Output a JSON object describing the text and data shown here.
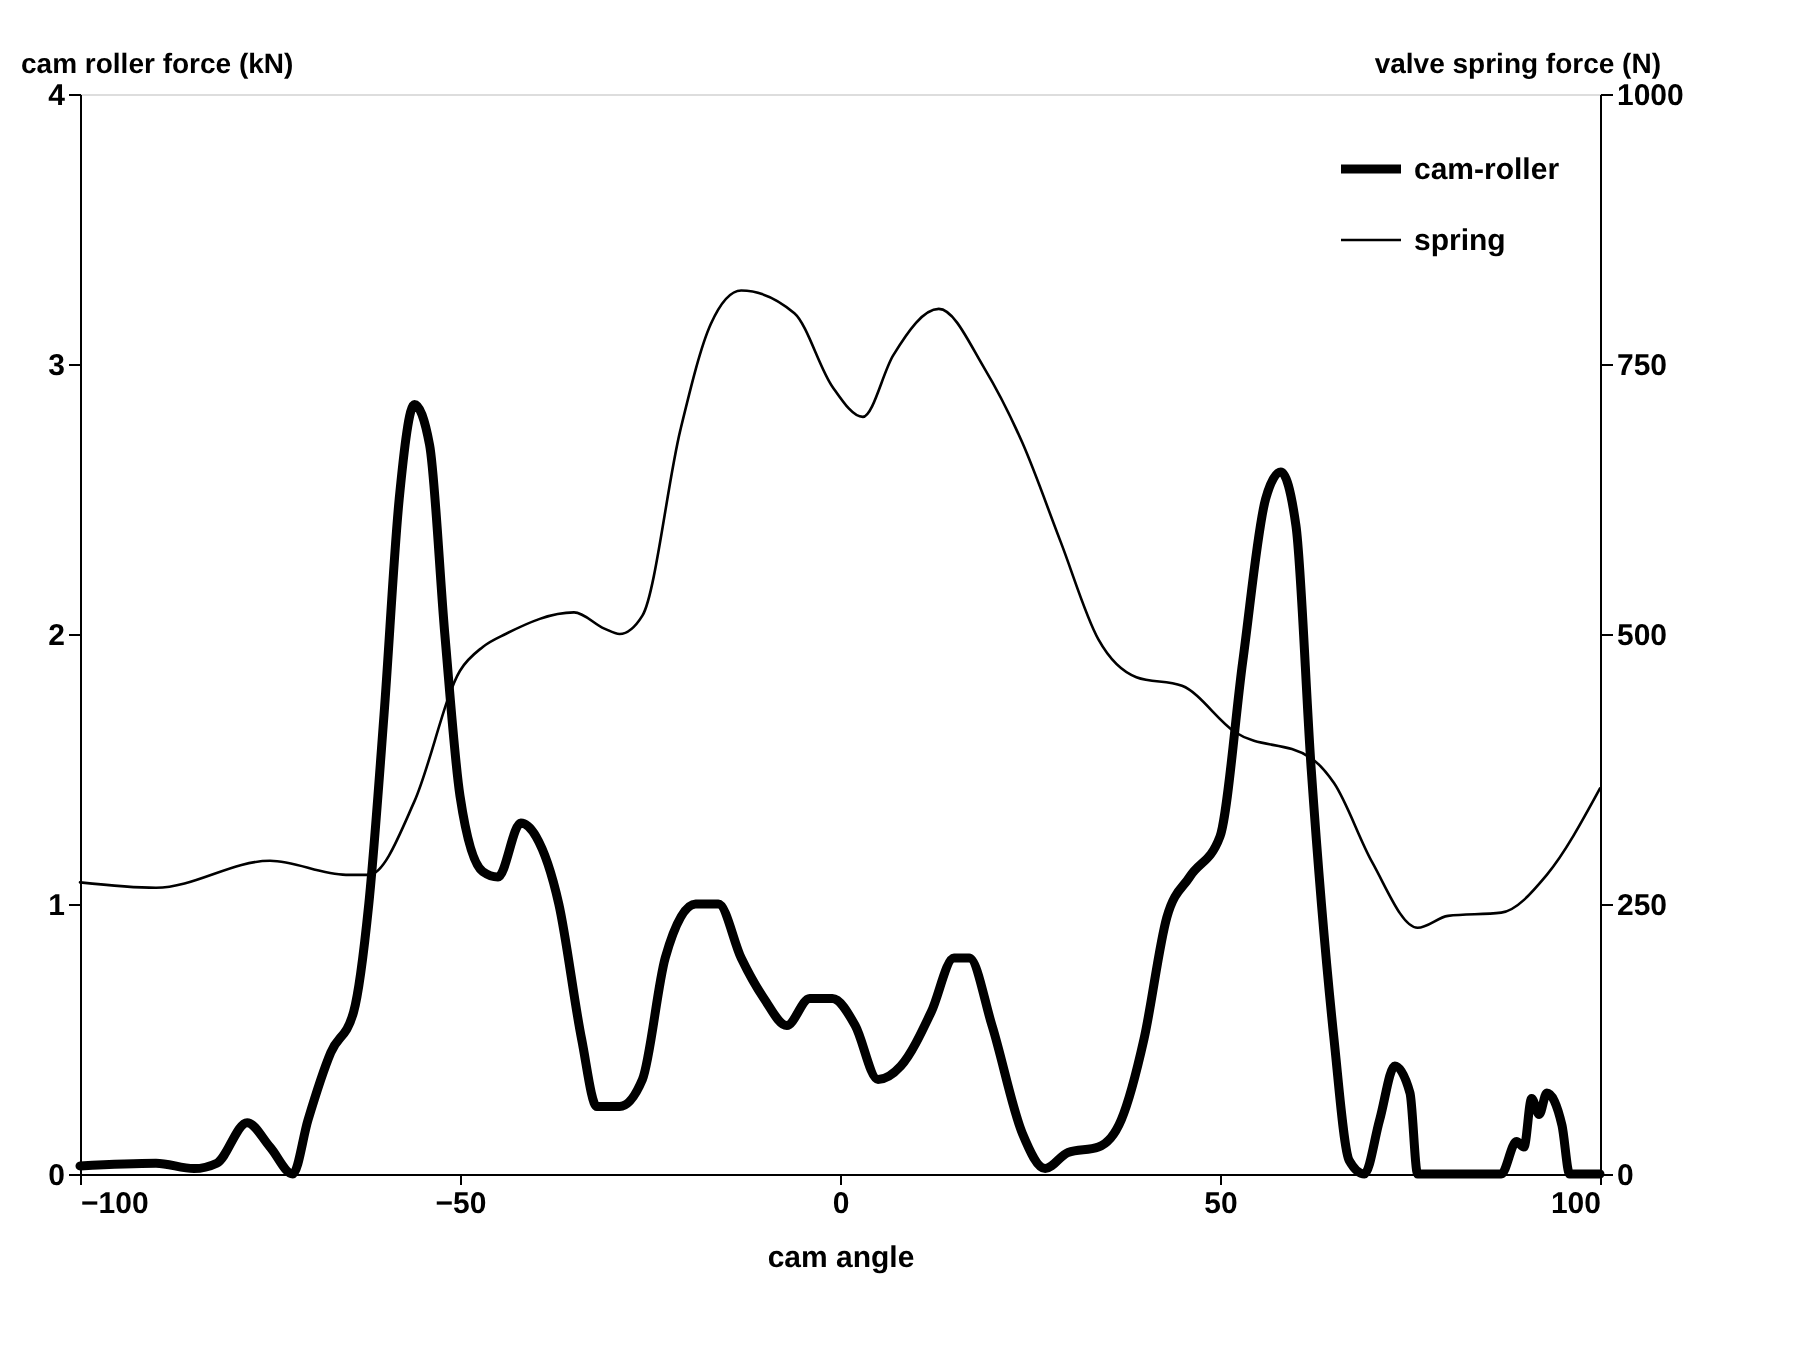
{
  "chart_data": {
    "type": "line",
    "xlabel": "cam angle",
    "ylabel": "cam roller force (kN)",
    "y2label": "valve spring force (N)",
    "xlim": [
      -100,
      100
    ],
    "xticks": [
      -100,
      -50,
      0,
      50,
      100
    ],
    "ylim": [
      0,
      4
    ],
    "yticks": [
      0,
      1,
      2,
      3,
      4
    ],
    "y2lim": [
      0,
      1000
    ],
    "y2ticks": [
      0,
      250,
      500,
      750,
      1000
    ],
    "grid": false,
    "legend": "top right",
    "line_style": "solid",
    "marker": "none",
    "series": [
      {
        "name": "cam-roller",
        "color": "#000000",
        "x": [
          -100,
          -90,
          -85,
          -82,
          -78,
          -75,
          -72,
          -70,
          -67,
          -64,
          -62,
          -60,
          -58,
          -56,
          -54,
          -52,
          -50,
          -47,
          -45,
          -42,
          -40,
          -37,
          -34,
          -32,
          -29,
          -26,
          -23,
          -19,
          -16,
          -13,
          -10,
          -7,
          -4,
          -1,
          2,
          5,
          8,
          12,
          15,
          17,
          20,
          24,
          27,
          30,
          34,
          37,
          40,
          43,
          46,
          50,
          53,
          56,
          58,
          60,
          62,
          65,
          67,
          69,
          71,
          73,
          75,
          76,
          80,
          87,
          89,
          90,
          91,
          92,
          93,
          95,
          96,
          100
        ],
        "values": [
          0.03,
          0.04,
          0.02,
          0.04,
          0.19,
          0.1,
          0.0,
          0.2,
          0.45,
          0.6,
          1.0,
          1.7,
          2.5,
          2.85,
          2.7,
          2.0,
          1.4,
          1.12,
          1.1,
          1.3,
          1.25,
          1.0,
          0.5,
          0.25,
          0.25,
          0.35,
          0.8,
          1.0,
          1.0,
          0.8,
          0.65,
          0.55,
          0.65,
          0.65,
          0.55,
          0.35,
          0.4,
          0.6,
          0.8,
          0.8,
          0.55,
          0.15,
          0.02,
          0.08,
          0.1,
          0.2,
          0.5,
          0.95,
          1.1,
          1.25,
          1.9,
          2.5,
          2.6,
          2.4,
          1.5,
          0.5,
          0.05,
          0.0,
          0.2,
          0.4,
          0.3,
          0.0,
          0.0,
          0.0,
          0.12,
          0.1,
          0.28,
          0.22,
          0.3,
          0.18,
          0.0,
          0.0
        ]
      },
      {
        "name": "spring",
        "color": "#000000",
        "axis": "y2",
        "x": [
          -100,
          -90,
          -75,
          -65,
          -62,
          -56,
          -50,
          -47,
          -44,
          -35,
          -31,
          -29,
          -26,
          -21,
          -17,
          -13,
          -6,
          -1,
          3,
          7,
          13,
          19,
          24,
          29,
          34,
          39,
          45,
          52,
          62,
          65,
          70,
          76,
          80,
          87,
          93,
          100
        ],
        "values": [
          270,
          265,
          290,
          277,
          277,
          345,
          466,
          488,
          500,
          520,
          505,
          500,
          517,
          689,
          787,
          818,
          797,
          729,
          701,
          758,
          801,
          746,
          677,
          586,
          495,
          460,
          452,
          409,
          385,
          362,
          289,
          228,
          239,
          242,
          277,
          357
        ]
      }
    ]
  }
}
